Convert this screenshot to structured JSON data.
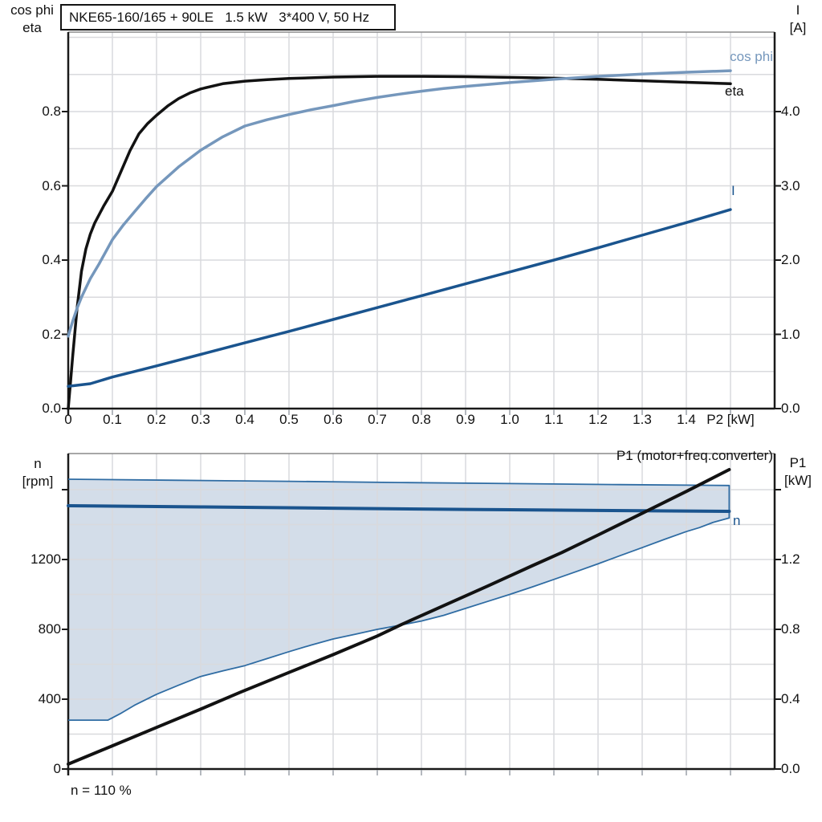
{
  "page": {
    "background": "#ffffff"
  },
  "colors": {
    "eta": "#121212",
    "cos_phi": "#7597bc",
    "current": "#1a548e",
    "speed": "#1a548e",
    "p1": "#121212",
    "envelope_fill": "#d3dde9",
    "envelope_stroke": "#2f6ca3",
    "grid": "#d9dadd",
    "axis": "#1a1a1a",
    "frame_top": "#8a8a8a",
    "minor_tick": "#9aa0a8",
    "text": "#111111"
  },
  "top_chart": {
    "title": "NKE65-160/165 + 90LE   1.5 kW   3*400 V, 50 Hz",
    "left_axis_label": [
      "cos phi",
      "eta"
    ],
    "right_axis_label": [
      "I",
      "[A]"
    ],
    "x_axis_label": "P2 [kW]",
    "curve_labels": {
      "cos_phi": "cos phi",
      "eta": "eta",
      "current": "I"
    }
  },
  "bottom_chart": {
    "left_axis_label": [
      "n",
      "[rpm]"
    ],
    "right_axis_label": [
      "P1",
      "[kW]"
    ],
    "p1_label": "P1 (motor+freq.converter)",
    "n_label": "n",
    "footnote": "n = 110 %"
  },
  "chart_data": [
    {
      "type": "line",
      "title": "NKE65-160/165 + 90LE   1.5 kW   3*400 V, 50 Hz",
      "xlabel": "P2 [kW]",
      "x_range": [
        0,
        1.6
      ],
      "left_axis": {
        "label": "cos phi / eta",
        "range": [
          0,
          1.0125
        ],
        "grid_step": 0.1,
        "tick_values": [
          0,
          0.2,
          0.4,
          0.6,
          0.8
        ],
        "tick_labels": [
          "0.0",
          "0.2",
          "0.4",
          "0.6",
          "0.8"
        ]
      },
      "right_axis": {
        "label": "I [A]",
        "range": [
          0,
          5.07
        ],
        "grid_step": 0.5,
        "tick_values": [
          0,
          1,
          2,
          3,
          4
        ],
        "tick_labels": [
          "0.0",
          "1.0",
          "2.0",
          "3.0",
          "4.0"
        ]
      },
      "x_tick_values": [
        0,
        0.1,
        0.2,
        0.3,
        0.4,
        0.5,
        0.6,
        0.7,
        0.8,
        0.9,
        1.0,
        1.1,
        1.2,
        1.3,
        1.4,
        1.5
      ],
      "x_tick_labels": [
        "0",
        "0.1",
        "0.2",
        "0.3",
        "0.4",
        "0.5",
        "0.6",
        "0.7",
        "0.8",
        "0.9",
        "1.0",
        "1.1",
        "1.2",
        "1.3",
        "1.4",
        ""
      ],
      "series": [
        {
          "name": "eta",
          "axis": "left",
          "color_key": "eta",
          "width": 3.5,
          "points": [
            [
              0,
              0.0
            ],
            [
              0.005,
              0.07
            ],
            [
              0.01,
              0.14
            ],
            [
              0.02,
              0.27
            ],
            [
              0.03,
              0.37
            ],
            [
              0.04,
              0.43
            ],
            [
              0.05,
              0.47
            ],
            [
              0.06,
              0.5
            ],
            [
              0.08,
              0.545
            ],
            [
              0.1,
              0.585
            ],
            [
              0.12,
              0.64
            ],
            [
              0.14,
              0.695
            ],
            [
              0.16,
              0.74
            ],
            [
              0.18,
              0.768
            ],
            [
              0.2,
              0.79
            ],
            [
              0.225,
              0.815
            ],
            [
              0.25,
              0.835
            ],
            [
              0.275,
              0.85
            ],
            [
              0.3,
              0.861
            ],
            [
              0.35,
              0.875
            ],
            [
              0.4,
              0.882
            ],
            [
              0.45,
              0.886
            ],
            [
              0.5,
              0.889
            ],
            [
              0.6,
              0.893
            ],
            [
              0.7,
              0.895
            ],
            [
              0.8,
              0.895
            ],
            [
              0.9,
              0.894
            ],
            [
              1.0,
              0.892
            ],
            [
              1.1,
              0.89
            ],
            [
              1.2,
              0.887
            ],
            [
              1.3,
              0.883
            ],
            [
              1.4,
              0.879
            ],
            [
              1.5,
              0.875
            ]
          ]
        },
        {
          "name": "cos phi",
          "axis": "left",
          "color_key": "cos_phi",
          "width": 3.5,
          "points": [
            [
              0,
              0.195
            ],
            [
              0.01,
              0.235
            ],
            [
              0.02,
              0.27
            ],
            [
              0.03,
              0.3
            ],
            [
              0.05,
              0.35
            ],
            [
              0.07,
              0.39
            ],
            [
              0.1,
              0.455
            ],
            [
              0.125,
              0.495
            ],
            [
              0.15,
              0.53
            ],
            [
              0.175,
              0.565
            ],
            [
              0.2,
              0.598
            ],
            [
              0.25,
              0.651
            ],
            [
              0.3,
              0.696
            ],
            [
              0.35,
              0.732
            ],
            [
              0.4,
              0.761
            ],
            [
              0.45,
              0.778
            ],
            [
              0.5,
              0.792
            ],
            [
              0.55,
              0.805
            ],
            [
              0.6,
              0.816
            ],
            [
              0.65,
              0.828
            ],
            [
              0.7,
              0.838
            ],
            [
              0.75,
              0.847
            ],
            [
              0.8,
              0.855
            ],
            [
              0.85,
              0.862
            ],
            [
              0.9,
              0.868
            ],
            [
              1.0,
              0.878
            ],
            [
              1.1,
              0.887
            ],
            [
              1.2,
              0.895
            ],
            [
              1.3,
              0.901
            ],
            [
              1.4,
              0.906
            ],
            [
              1.5,
              0.91
            ]
          ]
        },
        {
          "name": "I",
          "axis": "right",
          "color_key": "current",
          "width": 3.5,
          "points": [
            [
              0,
              0.3
            ],
            [
              0.05,
              0.335
            ],
            [
              0.1,
              0.425
            ],
            [
              0.15,
              0.5
            ],
            [
              0.2,
              0.575
            ],
            [
              0.3,
              0.73
            ],
            [
              0.4,
              0.885
            ],
            [
              0.5,
              1.04
            ],
            [
              0.6,
              1.2
            ],
            [
              0.7,
              1.36
            ],
            [
              0.8,
              1.52
            ],
            [
              0.9,
              1.68
            ],
            [
              1.0,
              1.84
            ],
            [
              1.1,
              2.0
            ],
            [
              1.2,
              2.165
            ],
            [
              1.3,
              2.335
            ],
            [
              1.4,
              2.505
            ],
            [
              1.5,
              2.68
            ]
          ]
        }
      ]
    },
    {
      "type": "area",
      "x_range": [
        0,
        1.6
      ],
      "left_axis": {
        "label": "n [rpm]",
        "range": [
          0,
          1807
        ],
        "grid_step": 200,
        "tick_values": [
          0,
          400,
          800,
          1200,
          1600
        ],
        "tick_labels": [
          "0",
          "400",
          "800",
          "1200",
          ""
        ]
      },
      "right_axis": {
        "label": "P1 [kW]",
        "range": [
          0,
          1.807
        ],
        "grid_step": 0.2,
        "tick_values": [
          0,
          0.4,
          0.8,
          1.2,
          1.6
        ],
        "tick_labels": [
          "0.0",
          "0.4",
          "0.8",
          "1.2",
          ""
        ]
      },
      "envelope": {
        "axis": "left",
        "right_edge_x": 1.497,
        "upper": [
          [
            0,
            1660
          ],
          [
            0.25,
            1654
          ],
          [
            0.5,
            1648
          ],
          [
            0.75,
            1641
          ],
          [
            1.0,
            1635
          ],
          [
            1.25,
            1629
          ],
          [
            1.497,
            1624
          ]
        ],
        "lower": [
          [
            0,
            280
          ],
          [
            0.09,
            280
          ],
          [
            0.12,
            320
          ],
          [
            0.15,
            365
          ],
          [
            0.2,
            428
          ],
          [
            0.25,
            480
          ],
          [
            0.3,
            530
          ],
          [
            0.35,
            562
          ],
          [
            0.4,
            592
          ],
          [
            0.45,
            632
          ],
          [
            0.5,
            672
          ],
          [
            0.55,
            710
          ],
          [
            0.6,
            745
          ],
          [
            0.65,
            772
          ],
          [
            0.7,
            800
          ],
          [
            0.75,
            823
          ],
          [
            0.8,
            848
          ],
          [
            0.85,
            880
          ],
          [
            0.9,
            920
          ],
          [
            0.95,
            960
          ],
          [
            1.0,
            1000
          ],
          [
            1.05,
            1042
          ],
          [
            1.1,
            1086
          ],
          [
            1.15,
            1130
          ],
          [
            1.2,
            1175
          ],
          [
            1.25,
            1222
          ],
          [
            1.3,
            1268
          ],
          [
            1.35,
            1315
          ],
          [
            1.4,
            1360
          ],
          [
            1.43,
            1383
          ],
          [
            1.46,
            1412
          ],
          [
            1.497,
            1438
          ]
        ]
      },
      "series": [
        {
          "name": "n",
          "axis": "left",
          "color_key": "speed",
          "width": 4,
          "points": [
            [
              0,
              1508
            ],
            [
              0.3,
              1501
            ],
            [
              0.6,
              1494
            ],
            [
              0.9,
              1487
            ],
            [
              1.2,
              1481
            ],
            [
              1.497,
              1476
            ]
          ]
        },
        {
          "name": "P1 (motor+freq.converter)",
          "axis": "right",
          "color_key": "p1",
          "width": 4,
          "points": [
            [
              0,
              0.028
            ],
            [
              0.1,
              0.133
            ],
            [
              0.2,
              0.238
            ],
            [
              0.3,
              0.343
            ],
            [
              0.39,
              0.44
            ],
            [
              0.5,
              0.553
            ],
            [
              0.6,
              0.655
            ],
            [
              0.7,
              0.762
            ],
            [
              0.755,
              0.828
            ],
            [
              0.85,
              0.935
            ],
            [
              0.95,
              1.048
            ],
            [
              1.05,
              1.163
            ],
            [
              1.118,
              1.24
            ],
            [
              1.2,
              1.34
            ],
            [
              1.3,
              1.465
            ],
            [
              1.4,
              1.59
            ],
            [
              1.497,
              1.715
            ]
          ]
        }
      ],
      "footnote": "n = 110 %"
    }
  ]
}
